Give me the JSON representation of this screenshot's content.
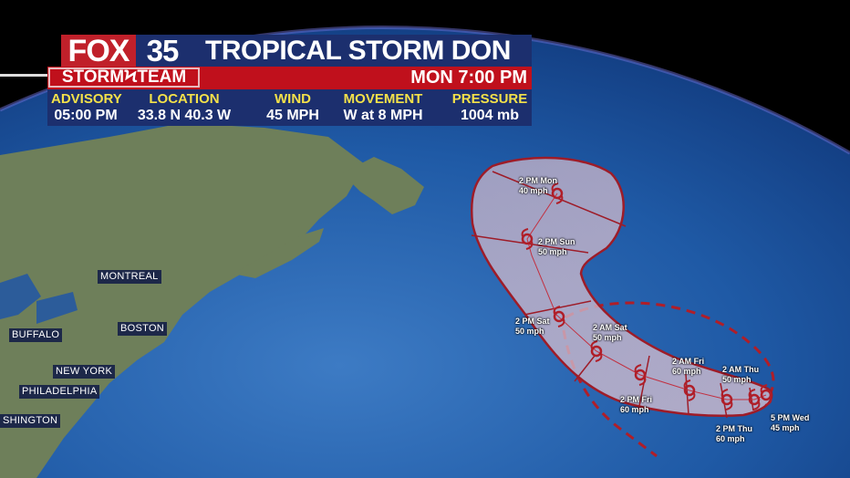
{
  "header": {
    "brand": "FOX",
    "channel": "35",
    "title": "TROPICAL STORM DON",
    "team": "STORMϞTEAM",
    "time": "MON 7:00 PM"
  },
  "info": [
    {
      "label": "ADVISORY",
      "value": "05:00 PM"
    },
    {
      "label": "LOCATION",
      "value": "33.8 N 40.3 W"
    },
    {
      "label": "WIND",
      "value": "45 MPH"
    },
    {
      "label": "MOVEMENT",
      "value": "W at 8 MPH"
    },
    {
      "label": "PRESSURE",
      "value": "1004 mb"
    }
  ],
  "cities": [
    "MONTREAL",
    "BOSTON",
    "BUFFALO",
    "NEW YORK",
    "PHILADELPHIA",
    "SHINGTON"
  ],
  "forecast_points": [
    {
      "time": "2 PM Mon",
      "wind": "40 mph"
    },
    {
      "time": "2 PM Sun",
      "wind": "50 mph"
    },
    {
      "time": "2 PM Sat",
      "wind": "50 mph"
    },
    {
      "time": "2 AM Sat",
      "wind": "50 mph"
    },
    {
      "time": "2 PM Fri",
      "wind": "60 mph"
    },
    {
      "time": "2 AM Fri",
      "wind": "60 mph"
    },
    {
      "time": "2 PM Thu",
      "wind": "60 mph"
    },
    {
      "time": "2 AM Thu",
      "wind": "50 mph"
    },
    {
      "time": "5 PM Wed",
      "wind": "45 mph"
    }
  ],
  "colors": {
    "brand_red": "#c0202a",
    "navy": "#1c2f6e",
    "label_yellow": "#f3e14a",
    "cone": "#b22030",
    "ocean": "#1e5aa8"
  }
}
